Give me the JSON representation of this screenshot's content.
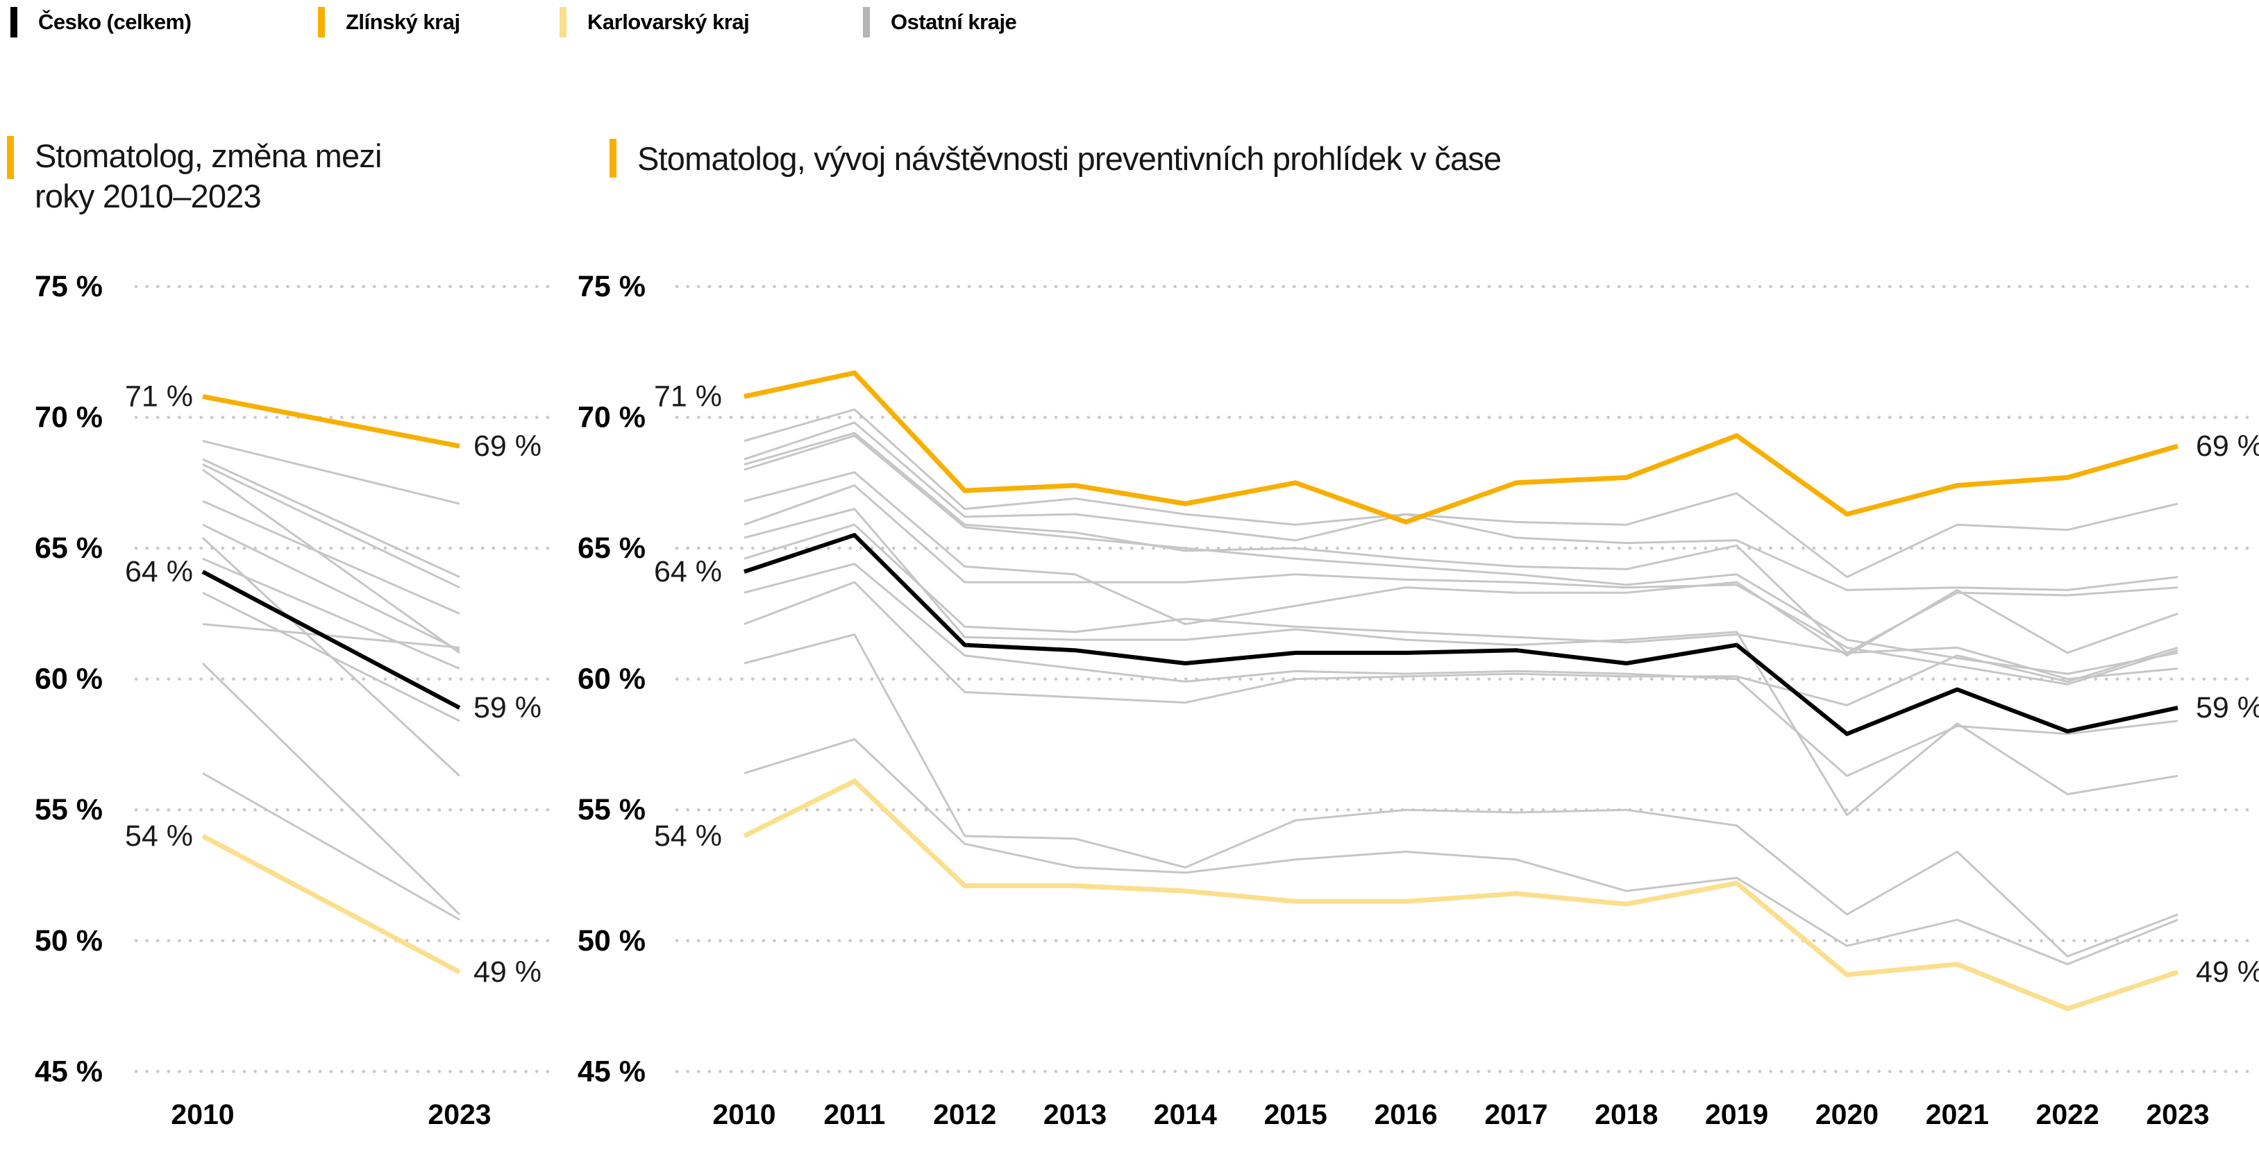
{
  "page": {
    "background": "#ffffff"
  },
  "colors": {
    "accent_orange": "#F8AF00",
    "czech_black": "#000000",
    "karlovarsky_yellow": "#FBDF8D",
    "other_gray_line": "#C6C6C6",
    "other_gray_swatch": "#B5B5B5",
    "grid_dot": "#C9C9C9"
  },
  "legend": {
    "items": [
      {
        "label": "Česko (celkem)",
        "color": "#000000"
      },
      {
        "label": "Zlínský kraj",
        "color": "#F8AF00"
      },
      {
        "label": "Karlovarský kraj",
        "color": "#FBDF8D"
      },
      {
        "label": "Ostatní kraje",
        "color": "#B5B5B5"
      }
    ]
  },
  "charts": {
    "left": {
      "accent_color": "#F8AF00",
      "title_line1": "Stomatolog, změna mezi",
      "title_line2": "roky 2010–2023"
    },
    "right": {
      "accent_color": "#F8AF00",
      "title": "Stomatolog, vývoj návštěvnosti preventivních prohlídek v čase"
    }
  },
  "chart_data": [
    {
      "id": "slope",
      "type": "line",
      "title": "Stomatolog, změna mezi roky 2010–2023",
      "x_labels": [
        "2010",
        "2023"
      ],
      "ylim": [
        45,
        75
      ],
      "grid": true,
      "legend_position": "top",
      "yticks": [
        {
          "value": 75,
          "label": "75 %"
        },
        {
          "value": 70,
          "label": "70 %"
        },
        {
          "value": 65,
          "label": "65 %"
        },
        {
          "value": 60,
          "label": "60 %"
        },
        {
          "value": 55,
          "label": "55 %"
        },
        {
          "value": 50,
          "label": "50 %"
        },
        {
          "value": 45,
          "label": "45 %"
        }
      ],
      "series": [
        {
          "name": "Zlínský kraj",
          "color": "#F8AF00",
          "width": 7,
          "z": 3,
          "values": [
            70.8,
            68.9
          ],
          "label_start": "71 %",
          "label_end": "69 %"
        },
        {
          "name": "Česko (celkem)",
          "color": "#000000",
          "width": 6,
          "z": 2,
          "values": [
            64.1,
            58.9
          ],
          "label_start": "64 %",
          "label_end": "59 %"
        },
        {
          "name": "Karlovarský kraj",
          "color": "#FBDF8D",
          "width": 7,
          "z": 1,
          "values": [
            54.0,
            48.8
          ],
          "label_start": "54 %",
          "label_end": "49 %"
        },
        {
          "name": "Ostatní kraje",
          "color": "#C6C6C6",
          "width": 3,
          "z": 0,
          "values": [
            69.1,
            66.7
          ]
        },
        {
          "name": "Ostatní kraje",
          "color": "#C6C6C6",
          "width": 3,
          "z": 0,
          "values": [
            68.4,
            63.9
          ]
        },
        {
          "name": "Ostatní kraje",
          "color": "#C6C6C6",
          "width": 3,
          "z": 0,
          "values": [
            68.2,
            63.5
          ]
        },
        {
          "name": "Ostatní kraje",
          "color": "#C6C6C6",
          "width": 3,
          "z": 0,
          "values": [
            68.0,
            61.0
          ]
        },
        {
          "name": "Ostatní kraje",
          "color": "#C6C6C6",
          "width": 3,
          "z": 0,
          "values": [
            66.8,
            62.5
          ]
        },
        {
          "name": "Ostatní kraje",
          "color": "#C6C6C6",
          "width": 3,
          "z": 0,
          "values": [
            65.9,
            61.1
          ]
        },
        {
          "name": "Ostatní kraje",
          "color": "#C6C6C6",
          "width": 3,
          "z": 0,
          "values": [
            65.4,
            56.3
          ]
        },
        {
          "name": "Ostatní kraje",
          "color": "#C6C6C6",
          "width": 3,
          "z": 0,
          "values": [
            64.6,
            60.4
          ]
        },
        {
          "name": "Ostatní kraje",
          "color": "#C6C6C6",
          "width": 3,
          "z": 0,
          "values": [
            63.3,
            58.4
          ]
        },
        {
          "name": "Ostatní kraje",
          "color": "#C6C6C6",
          "width": 3,
          "z": 0,
          "values": [
            62.1,
            61.2
          ]
        },
        {
          "name": "Ostatní kraje",
          "color": "#C6C6C6",
          "width": 3,
          "z": 0,
          "values": [
            60.6,
            51.0
          ]
        },
        {
          "name": "Ostatní kraje",
          "color": "#C6C6C6",
          "width": 3,
          "z": 0,
          "values": [
            56.4,
            50.8
          ]
        }
      ]
    },
    {
      "id": "timeline",
      "type": "line",
      "title": "Stomatolog, vývoj návštěvnosti preventivních prohlídek v čase",
      "x": [
        2010,
        2011,
        2012,
        2013,
        2014,
        2015,
        2016,
        2017,
        2018,
        2019,
        2020,
        2021,
        2022,
        2023
      ],
      "x_labels": [
        "2010",
        "2011",
        "2012",
        "2013",
        "2014",
        "2015",
        "2016",
        "2017",
        "2018",
        "2019",
        "2020",
        "2021",
        "2022",
        "2023"
      ],
      "ylim": [
        45,
        75
      ],
      "grid": true,
      "legend_position": "top",
      "yticks": [
        {
          "value": 75,
          "label": "75 %"
        },
        {
          "value": 70,
          "label": "70 %"
        },
        {
          "value": 65,
          "label": "65 %"
        },
        {
          "value": 60,
          "label": "60 %"
        },
        {
          "value": 55,
          "label": "55 %"
        },
        {
          "value": 50,
          "label": "50 %"
        },
        {
          "value": 45,
          "label": "45 %"
        }
      ],
      "series": [
        {
          "name": "Zlínský kraj",
          "color": "#F8AF00",
          "width": 7,
          "z": 3,
          "values": [
            70.8,
            71.7,
            67.2,
            67.4,
            66.7,
            67.5,
            66.0,
            67.5,
            67.7,
            69.3,
            66.3,
            67.4,
            67.7,
            68.9
          ],
          "label_start": "71 %",
          "label_end": "69 %"
        },
        {
          "name": "Česko (celkem)",
          "color": "#000000",
          "width": 6,
          "z": 2,
          "values": [
            64.1,
            65.5,
            61.3,
            61.1,
            60.6,
            61.0,
            61.0,
            61.1,
            60.6,
            61.3,
            57.9,
            59.6,
            58.0,
            58.9
          ],
          "label_start": "64 %",
          "label_end": "59 %"
        },
        {
          "name": "Karlovarský kraj",
          "color": "#FBDF8D",
          "width": 7,
          "z": 1,
          "values": [
            54.0,
            56.1,
            52.1,
            52.1,
            51.9,
            51.5,
            51.5,
            51.8,
            51.4,
            52.2,
            48.7,
            49.1,
            47.4,
            48.8
          ],
          "label_start": "54 %",
          "label_end": "49 %"
        },
        {
          "name": "Ostatní kraje",
          "color": "#C6C6C6",
          "width": 3,
          "z": 0,
          "values": [
            69.1,
            70.3,
            66.5,
            66.9,
            66.3,
            65.9,
            66.3,
            66.0,
            65.9,
            67.1,
            63.9,
            65.9,
            65.7,
            66.7
          ]
        },
        {
          "name": "Ostatní kraje",
          "color": "#C6C6C6",
          "width": 3,
          "z": 0,
          "values": [
            68.4,
            69.8,
            66.2,
            66.3,
            65.8,
            65.3,
            66.3,
            65.4,
            65.2,
            65.3,
            63.4,
            63.5,
            63.4,
            63.9
          ]
        },
        {
          "name": "Ostatní kraje",
          "color": "#C6C6C6",
          "width": 3,
          "z": 0,
          "values": [
            68.2,
            69.4,
            65.9,
            65.6,
            64.9,
            65.0,
            64.6,
            64.3,
            64.2,
            65.1,
            61.0,
            63.3,
            63.2,
            63.5
          ]
        },
        {
          "name": "Ostatní kraje",
          "color": "#C6C6C6",
          "width": 3,
          "z": 0,
          "values": [
            68.0,
            69.3,
            65.8,
            65.4,
            65.0,
            64.6,
            64.3,
            64.0,
            63.6,
            64.0,
            61.5,
            60.8,
            60.2,
            61.0
          ]
        },
        {
          "name": "Ostatní kraje",
          "color": "#C6C6C6",
          "width": 3,
          "z": 0,
          "values": [
            66.8,
            67.9,
            64.3,
            64.0,
            62.1,
            62.8,
            63.5,
            63.3,
            63.3,
            63.7,
            60.9,
            63.4,
            61.0,
            62.5
          ]
        },
        {
          "name": "Ostatní kraje",
          "color": "#C6C6C6",
          "width": 3,
          "z": 0,
          "values": [
            65.9,
            67.4,
            63.7,
            63.7,
            63.7,
            64.0,
            63.8,
            63.7,
            63.5,
            63.6,
            61.2,
            60.5,
            59.8,
            61.1
          ]
        },
        {
          "name": "Ostatní kraje",
          "color": "#C6C6C6",
          "width": 3,
          "z": 0,
          "values": [
            65.4,
            66.5,
            61.6,
            61.5,
            61.5,
            61.9,
            61.5,
            61.3,
            61.5,
            61.8,
            54.8,
            58.3,
            55.6,
            56.3
          ]
        },
        {
          "name": "Ostatní kraje",
          "color": "#C6C6C6",
          "width": 3,
          "z": 0,
          "values": [
            64.6,
            65.9,
            62.0,
            61.8,
            62.3,
            62.0,
            61.8,
            61.6,
            61.4,
            61.7,
            61.0,
            61.2,
            60.0,
            60.4
          ]
        },
        {
          "name": "Ostatní kraje",
          "color": "#C6C6C6",
          "width": 3,
          "z": 0,
          "values": [
            63.3,
            64.4,
            60.9,
            60.4,
            59.9,
            60.3,
            60.2,
            60.3,
            60.2,
            60.0,
            56.3,
            58.2,
            57.9,
            58.4
          ]
        },
        {
          "name": "Ostatní kraje",
          "color": "#C6C6C6",
          "width": 3,
          "z": 0,
          "values": [
            62.1,
            63.7,
            59.5,
            59.3,
            59.1,
            60.0,
            60.1,
            60.2,
            60.1,
            60.1,
            59.0,
            60.9,
            59.9,
            61.2
          ]
        },
        {
          "name": "Ostatní kraje",
          "color": "#C6C6C6",
          "width": 3,
          "z": 0,
          "values": [
            60.6,
            61.7,
            54.0,
            53.9,
            52.8,
            54.6,
            55.0,
            54.9,
            55.0,
            54.4,
            51.0,
            53.4,
            49.4,
            51.0
          ]
        },
        {
          "name": "Ostatní kraje",
          "color": "#C6C6C6",
          "width": 3,
          "z": 0,
          "values": [
            56.4,
            57.7,
            53.7,
            52.8,
            52.6,
            53.1,
            53.4,
            53.1,
            51.9,
            52.4,
            49.8,
            50.8,
            49.1,
            50.8
          ]
        }
      ]
    }
  ]
}
